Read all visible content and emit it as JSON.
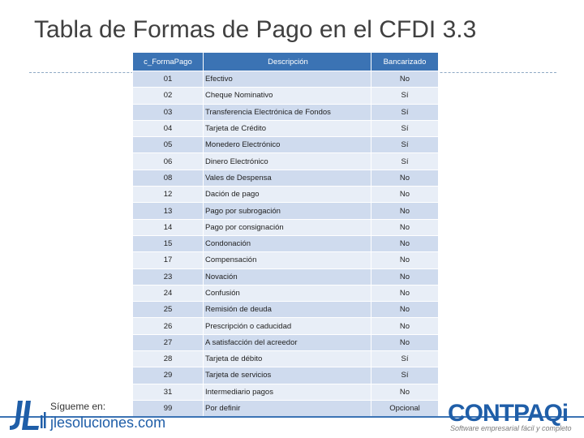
{
  "title": "Tabla de Formas de Pago en el CFDI 3.3",
  "table": {
    "headers": [
      "c_FormaPago",
      "Descripción",
      "Bancarizado"
    ],
    "rows": [
      [
        "01",
        "Efectivo",
        "No"
      ],
      [
        "02",
        "Cheque Nominativo",
        "Sí"
      ],
      [
        "03",
        "Transferencia Electrónica de Fondos",
        "Sí"
      ],
      [
        "04",
        "Tarjeta de Crédito",
        "Sí"
      ],
      [
        "05",
        "Monedero Electrónico",
        "Sí"
      ],
      [
        "06",
        "Dinero Electrónico",
        "Sí"
      ],
      [
        "08",
        "Vales de Despensa",
        "No"
      ],
      [
        "12",
        "Dación de pago",
        "No"
      ],
      [
        "13",
        "Pago por subrogación",
        "No"
      ],
      [
        "14",
        "Pago por consignación",
        "No"
      ],
      [
        "15",
        "Condonación",
        "No"
      ],
      [
        "17",
        "Compensación",
        "No"
      ],
      [
        "23",
        "Novación",
        "No"
      ],
      [
        "24",
        "Confusión",
        "No"
      ],
      [
        "25",
        "Remisión de deuda",
        "No"
      ],
      [
        "26",
        "Prescripción o caducidad",
        "No"
      ],
      [
        "27",
        "A satisfacción del acreedor",
        "No"
      ],
      [
        "28",
        "Tarjeta de débito",
        "Sí"
      ],
      [
        "29",
        "Tarjeta de servicios",
        "Sí"
      ],
      [
        "31",
        "Intermediario pagos",
        "No"
      ],
      [
        "99",
        "Por definir",
        "Opcional"
      ]
    ]
  },
  "footer": {
    "follow_label": "Sígueme en:",
    "website": "jlesoluciones.com",
    "brand": "CONTPAQi",
    "brand_tagline": "Software empresarial fácil y completo",
    "logo_text": "JL"
  },
  "colors": {
    "header_bg": "#3b73b4",
    "row_odd": "#cfdbee",
    "row_even": "#e8eef7",
    "brand_blue": "#1f5ea8"
  }
}
